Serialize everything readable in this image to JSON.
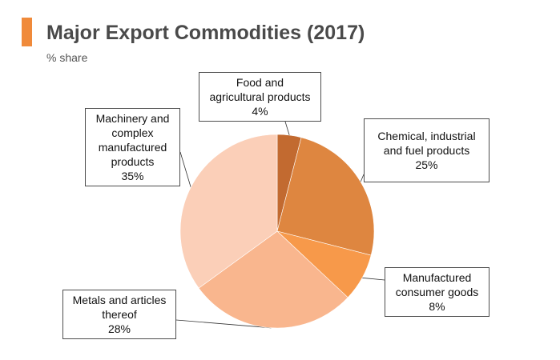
{
  "header": {
    "title": "Major Export Commodities (2017)",
    "subtitle": "% share",
    "accent_color": "#f08a3a"
  },
  "chart_data": {
    "type": "pie",
    "title": "Major Export Commodities (2017)",
    "subtitle": "% share",
    "start_angle_deg": 0,
    "direction": "clockwise",
    "slices": [
      {
        "label_lines": [
          "Food and",
          "agricultural products"
        ],
        "value_text": "4%",
        "value": 4,
        "color": "#c26a30"
      },
      {
        "label_lines": [
          "Chemical, industrial",
          "and fuel products"
        ],
        "value_text": "25%",
        "value": 25,
        "color": "#de8640"
      },
      {
        "label_lines": [
          "Manufactured",
          "consumer goods"
        ],
        "value_text": "8%",
        "value": 8,
        "color": "#f7994a"
      },
      {
        "label_lines": [
          "Metals and articles",
          "thereof"
        ],
        "value_text": "28%",
        "value": 28,
        "color": "#f9b68e"
      },
      {
        "label_lines": [
          "Machinery and",
          "complex",
          "manufactured",
          "products"
        ],
        "value_text": "35%",
        "value": 35,
        "color": "#fbcfb8"
      }
    ]
  }
}
